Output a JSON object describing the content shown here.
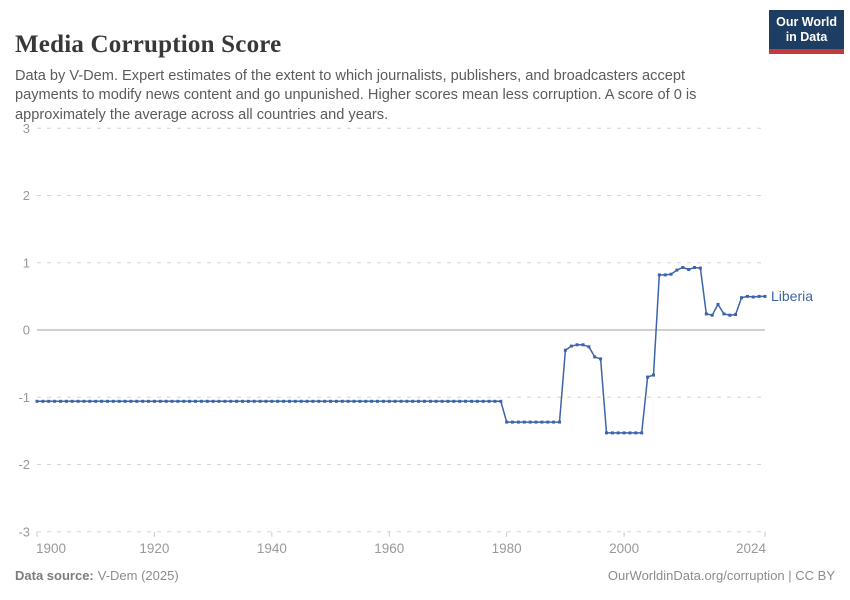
{
  "header": {
    "title": "Media Corruption Score",
    "subtitle": "Data by V-Dem. Expert estimates of the extent to which journalists, publishers, and broadcasters accept payments to modify news content and go unpunished. Higher scores mean less corruption. A score of 0 is approximately the average across all countries and years.",
    "logo": {
      "line1": "Our World",
      "line2": "in Data"
    }
  },
  "footer": {
    "source_label": "Data source:",
    "source_value": "V-Dem (2025)",
    "credit": "OurWorldinData.org/corruption | CC BY"
  },
  "colors": {
    "series": "#3d64a8",
    "grid": "#d6d6d6",
    "zero_line": "#a1a1a1",
    "axis_text": "#999999",
    "logo_bg": "#1d3d63",
    "logo_red": "#c43a3c"
  },
  "chart_data": {
    "type": "line",
    "title": "Media Corruption Score",
    "xlabel": "",
    "ylabel": "",
    "xlim": [
      1900,
      2024
    ],
    "ylim": [
      -3,
      3
    ],
    "x_ticks": [
      1900,
      1920,
      1940,
      1960,
      1980,
      2000,
      2024
    ],
    "y_ticks": [
      3,
      2,
      1,
      0,
      -1,
      -2,
      -3
    ],
    "grid": "horizontal dashed gridlines, solid line at zero",
    "legend": "label at end of line",
    "series": [
      {
        "name": "Liberia",
        "color": "#3d64a8",
        "points": [
          [
            1900,
            -1.06
          ],
          [
            1901,
            -1.06
          ],
          [
            1902,
            -1.06
          ],
          [
            1903,
            -1.06
          ],
          [
            1904,
            -1.06
          ],
          [
            1905,
            -1.06
          ],
          [
            1906,
            -1.06
          ],
          [
            1907,
            -1.06
          ],
          [
            1908,
            -1.06
          ],
          [
            1909,
            -1.06
          ],
          [
            1910,
            -1.06
          ],
          [
            1911,
            -1.06
          ],
          [
            1912,
            -1.06
          ],
          [
            1913,
            -1.06
          ],
          [
            1914,
            -1.06
          ],
          [
            1915,
            -1.06
          ],
          [
            1916,
            -1.06
          ],
          [
            1917,
            -1.06
          ],
          [
            1918,
            -1.06
          ],
          [
            1919,
            -1.06
          ],
          [
            1920,
            -1.06
          ],
          [
            1921,
            -1.06
          ],
          [
            1922,
            -1.06
          ],
          [
            1923,
            -1.06
          ],
          [
            1924,
            -1.06
          ],
          [
            1925,
            -1.06
          ],
          [
            1926,
            -1.06
          ],
          [
            1927,
            -1.06
          ],
          [
            1928,
            -1.06
          ],
          [
            1929,
            -1.06
          ],
          [
            1930,
            -1.06
          ],
          [
            1931,
            -1.06
          ],
          [
            1932,
            -1.06
          ],
          [
            1933,
            -1.06
          ],
          [
            1934,
            -1.06
          ],
          [
            1935,
            -1.06
          ],
          [
            1936,
            -1.06
          ],
          [
            1937,
            -1.06
          ],
          [
            1938,
            -1.06
          ],
          [
            1939,
            -1.06
          ],
          [
            1940,
            -1.06
          ],
          [
            1941,
            -1.06
          ],
          [
            1942,
            -1.06
          ],
          [
            1943,
            -1.06
          ],
          [
            1944,
            -1.06
          ],
          [
            1945,
            -1.06
          ],
          [
            1946,
            -1.06
          ],
          [
            1947,
            -1.06
          ],
          [
            1948,
            -1.06
          ],
          [
            1949,
            -1.06
          ],
          [
            1950,
            -1.06
          ],
          [
            1951,
            -1.06
          ],
          [
            1952,
            -1.06
          ],
          [
            1953,
            -1.06
          ],
          [
            1954,
            -1.06
          ],
          [
            1955,
            -1.06
          ],
          [
            1956,
            -1.06
          ],
          [
            1957,
            -1.06
          ],
          [
            1958,
            -1.06
          ],
          [
            1959,
            -1.06
          ],
          [
            1960,
            -1.06
          ],
          [
            1961,
            -1.06
          ],
          [
            1962,
            -1.06
          ],
          [
            1963,
            -1.06
          ],
          [
            1964,
            -1.06
          ],
          [
            1965,
            -1.06
          ],
          [
            1966,
            -1.06
          ],
          [
            1967,
            -1.06
          ],
          [
            1968,
            -1.06
          ],
          [
            1969,
            -1.06
          ],
          [
            1970,
            -1.06
          ],
          [
            1971,
            -1.06
          ],
          [
            1972,
            -1.06
          ],
          [
            1973,
            -1.06
          ],
          [
            1974,
            -1.06
          ],
          [
            1975,
            -1.06
          ],
          [
            1976,
            -1.06
          ],
          [
            1977,
            -1.06
          ],
          [
            1978,
            -1.06
          ],
          [
            1979,
            -1.06
          ],
          [
            1980,
            -1.37
          ],
          [
            1981,
            -1.37
          ],
          [
            1982,
            -1.37
          ],
          [
            1983,
            -1.37
          ],
          [
            1984,
            -1.37
          ],
          [
            1985,
            -1.37
          ],
          [
            1986,
            -1.37
          ],
          [
            1987,
            -1.37
          ],
          [
            1988,
            -1.37
          ],
          [
            1989,
            -1.37
          ],
          [
            1990,
            -0.3
          ],
          [
            1991,
            -0.24
          ],
          [
            1992,
            -0.22
          ],
          [
            1993,
            -0.22
          ],
          [
            1994,
            -0.25
          ],
          [
            1995,
            -0.4
          ],
          [
            1996,
            -0.43
          ],
          [
            1997,
            -1.53
          ],
          [
            1998,
            -1.53
          ],
          [
            1999,
            -1.53
          ],
          [
            2000,
            -1.53
          ],
          [
            2001,
            -1.53
          ],
          [
            2002,
            -1.53
          ],
          [
            2003,
            -1.53
          ],
          [
            2004,
            -0.7
          ],
          [
            2005,
            -0.67
          ],
          [
            2006,
            0.82
          ],
          [
            2007,
            0.82
          ],
          [
            2008,
            0.83
          ],
          [
            2009,
            0.89
          ],
          [
            2010,
            0.93
          ],
          [
            2011,
            0.9
          ],
          [
            2012,
            0.93
          ],
          [
            2013,
            0.92
          ],
          [
            2014,
            0.24
          ],
          [
            2015,
            0.22
          ],
          [
            2016,
            0.38
          ],
          [
            2017,
            0.24
          ],
          [
            2018,
            0.22
          ],
          [
            2019,
            0.23
          ],
          [
            2020,
            0.48
          ],
          [
            2021,
            0.5
          ],
          [
            2022,
            0.49
          ],
          [
            2023,
            0.5
          ],
          [
            2024,
            0.5
          ]
        ]
      }
    ]
  }
}
